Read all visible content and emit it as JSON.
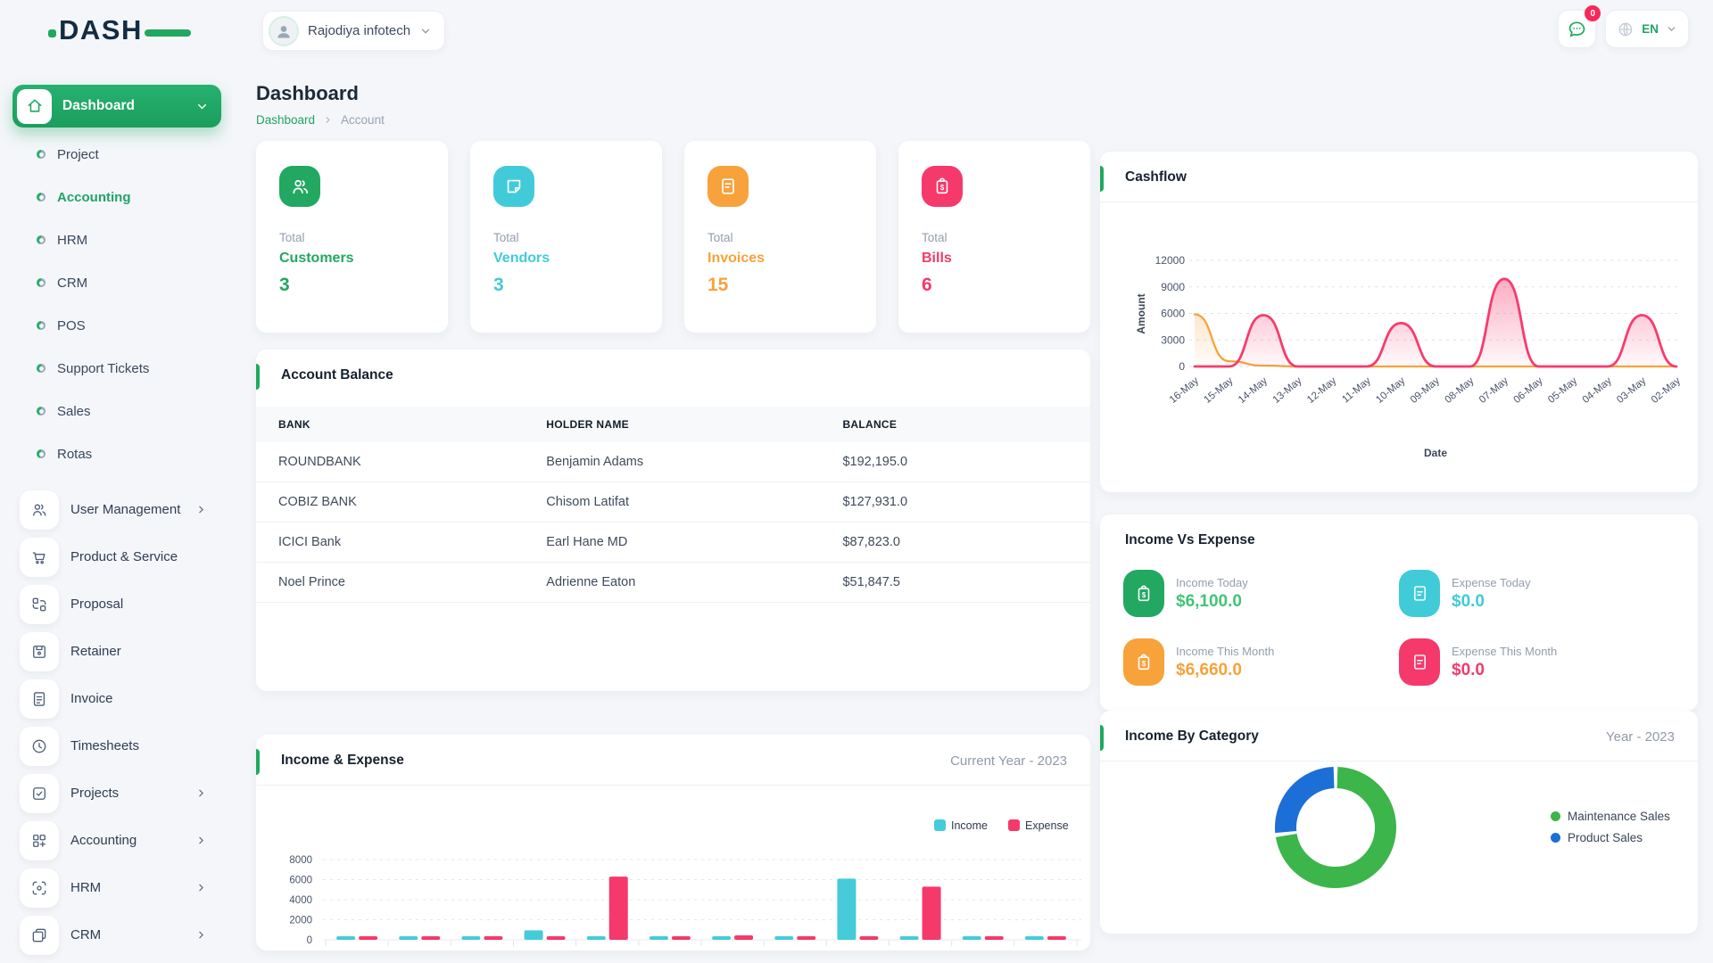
{
  "brand": {
    "name": "DASH"
  },
  "topbar": {
    "workspace": {
      "name": "Rajodiya infotech"
    },
    "messages": {
      "badge": "0"
    },
    "language": {
      "code": "EN"
    }
  },
  "sidebar": {
    "main_item": {
      "label": "Dashboard"
    },
    "dashboard_items": [
      {
        "label": "Project",
        "active": false
      },
      {
        "label": "Accounting",
        "active": true
      },
      {
        "label": "HRM",
        "active": false
      },
      {
        "label": "CRM",
        "active": false
      },
      {
        "label": "POS",
        "active": false
      },
      {
        "label": "Support Tickets",
        "active": false
      },
      {
        "label": "Sales",
        "active": false
      },
      {
        "label": "Rotas",
        "active": false
      }
    ],
    "modules": [
      {
        "label": "User Management",
        "chevron": true
      },
      {
        "label": "Product & Service",
        "chevron": false
      },
      {
        "label": "Proposal",
        "chevron": false
      },
      {
        "label": "Retainer",
        "chevron": false
      },
      {
        "label": "Invoice",
        "chevron": false
      },
      {
        "label": "Timesheets",
        "chevron": false
      },
      {
        "label": "Projects",
        "chevron": true
      },
      {
        "label": "Accounting",
        "chevron": true
      },
      {
        "label": "HRM",
        "chevron": true
      },
      {
        "label": "CRM",
        "chevron": true
      }
    ]
  },
  "page": {
    "title": "Dashboard",
    "breadcrumb": {
      "root": "Dashboard",
      "current": "Account"
    }
  },
  "stats": [
    {
      "prefix": "Total",
      "label": "Customers",
      "value": "3",
      "color": "#22A861",
      "icon": "users-icon"
    },
    {
      "prefix": "Total",
      "label": "Vendors",
      "value": "3",
      "color": "#41CBD8",
      "icon": "note-icon"
    },
    {
      "prefix": "Total",
      "label": "Invoices",
      "value": "15",
      "color": "#F7A23B",
      "icon": "invoice-icon"
    },
    {
      "prefix": "Total",
      "label": "Bills",
      "value": "6",
      "color": "#F5396B",
      "icon": "bill-icon"
    }
  ],
  "account_balance": {
    "title": "Account Balance",
    "columns": [
      "BANK",
      "HOLDER NAME",
      "BALANCE"
    ],
    "rows": [
      [
        "ROUNDBANK",
        "Benjamin Adams",
        "$192,195.0"
      ],
      [
        "COBIZ BANK",
        "Chisom Latifat",
        "$127,931.0"
      ],
      [
        "ICICI Bank",
        "Earl Hane MD",
        "$87,823.0"
      ],
      [
        "Noel Prince",
        "Adrienne Eaton",
        "$51,847.5"
      ]
    ]
  },
  "income_vs_expense": {
    "title": "Income Vs Expense",
    "items": [
      {
        "label": "Income Today",
        "value": "$6,100.0",
        "icon": "clipboard-dollar-icon"
      },
      {
        "label": "Expense Today",
        "value": "$0.0",
        "icon": "file-icon"
      },
      {
        "label": "Income This Month",
        "value": "$6,660.0",
        "icon": "clipboard-dollar-icon"
      },
      {
        "label": "Expense This Month",
        "value": "$0.0",
        "icon": "file-icon"
      }
    ]
  },
  "chart_data": [
    {
      "type": "line",
      "title": "Cashflow",
      "xlabel": "Date",
      "ylabel": "Amount",
      "ylim": [
        0,
        12000
      ],
      "yticks": [
        0,
        3000,
        6000,
        9000,
        12000
      ],
      "grid": true,
      "x": [
        "16-May",
        "15-May",
        "14-May",
        "13-May",
        "12-May",
        "11-May",
        "10-May",
        "09-May",
        "08-May",
        "07-May",
        "06-May",
        "05-May",
        "04-May",
        "03-May",
        "02-May"
      ],
      "series": [
        {
          "color": "#F5A43C",
          "values": [
            5900,
            600,
            100,
            0,
            0,
            0,
            0,
            0,
            0,
            0,
            0,
            0,
            0,
            0,
            0
          ]
        },
        {
          "color": "#F73B6E",
          "values": [
            0,
            0,
            5800,
            0,
            0,
            0,
            4900,
            0,
            0,
            9900,
            0,
            0,
            0,
            5800,
            0
          ]
        }
      ]
    },
    {
      "type": "bar",
      "title": "Income & Expense",
      "subtitle": "Current Year - 2023",
      "ylim": [
        0,
        8000
      ],
      "yticks": [
        0,
        2000,
        4000,
        6000,
        8000
      ],
      "grid": true,
      "legend_position": "top-right",
      "series": [
        {
          "name": "Income",
          "color": "#45CBD9",
          "values": [
            200,
            120,
            120,
            950,
            120,
            130,
            200,
            130,
            6100,
            130,
            130,
            130
          ]
        },
        {
          "name": "Expense",
          "color": "#F5396B",
          "values": [
            120,
            120,
            120,
            130,
            6300,
            130,
            450,
            130,
            150,
            5300,
            130,
            130
          ]
        }
      ]
    },
    {
      "type": "pie",
      "title": "Income By Category",
      "subtitle": "Year - 2023",
      "labels": [
        "Maintenance Sales",
        "Product Sales"
      ],
      "values": [
        73,
        27
      ],
      "colors": [
        "#3CB54A",
        "#1B6FD6"
      ],
      "legend_position": "right"
    }
  ]
}
